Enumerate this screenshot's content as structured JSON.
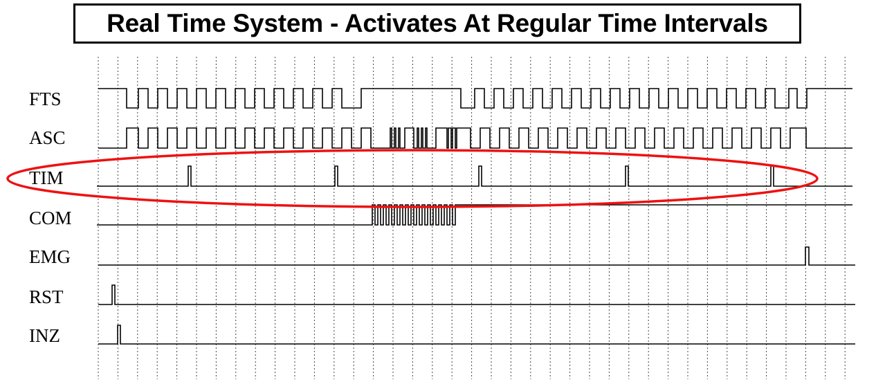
{
  "title": "Real Time System - Activates At Regular Time Intervals",
  "colors": {
    "wave": "#000000",
    "grid": "#444444",
    "highlight": "#ee1111"
  },
  "highlighted_signal": "TIM",
  "signals": [
    {
      "name": "FTS"
    },
    {
      "name": "ASC"
    },
    {
      "name": "TIM"
    },
    {
      "name": "COM"
    },
    {
      "name": "EMG"
    },
    {
      "name": "RST"
    },
    {
      "name": "INZ"
    }
  ]
}
